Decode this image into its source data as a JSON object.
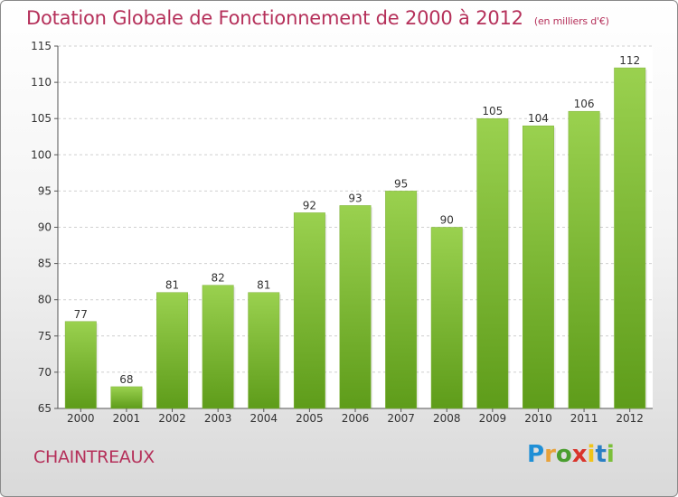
{
  "header": {
    "title": "Dotation Globale de Fonctionnement de 2000 à 2012",
    "subtitle": "(en milliers d'€)"
  },
  "footer": {
    "commune": "CHAINTREAUX",
    "logo_letters": [
      "P",
      "r",
      "o",
      "x",
      "i",
      "t",
      "i"
    ]
  },
  "colors": {
    "accent": "#b5305a",
    "bar_top": "#9ad14f",
    "bar_bottom": "#5e9c1a"
  },
  "chart_data": {
    "type": "bar",
    "title": "Dotation Globale de Fonctionnement de 2000 à 2012",
    "subtitle": "(en milliers d'€)",
    "categories": [
      "2000",
      "2001",
      "2002",
      "2003",
      "2004",
      "2005",
      "2006",
      "2007",
      "2008",
      "2009",
      "2010",
      "2011",
      "2012"
    ],
    "values": [
      77,
      68,
      81,
      82,
      81,
      92,
      93,
      95,
      90,
      105,
      104,
      106,
      112
    ],
    "data_labels": [
      "77",
      "68",
      "81",
      "82",
      "81",
      "92",
      "93",
      "95",
      "90",
      "105",
      "104",
      "106",
      "112"
    ],
    "ylim": [
      65,
      115
    ],
    "yticks": [
      "65",
      "70",
      "75",
      "80",
      "85",
      "90",
      "95",
      "100",
      "105",
      "110",
      "115"
    ],
    "grid": true,
    "legend": "none"
  }
}
